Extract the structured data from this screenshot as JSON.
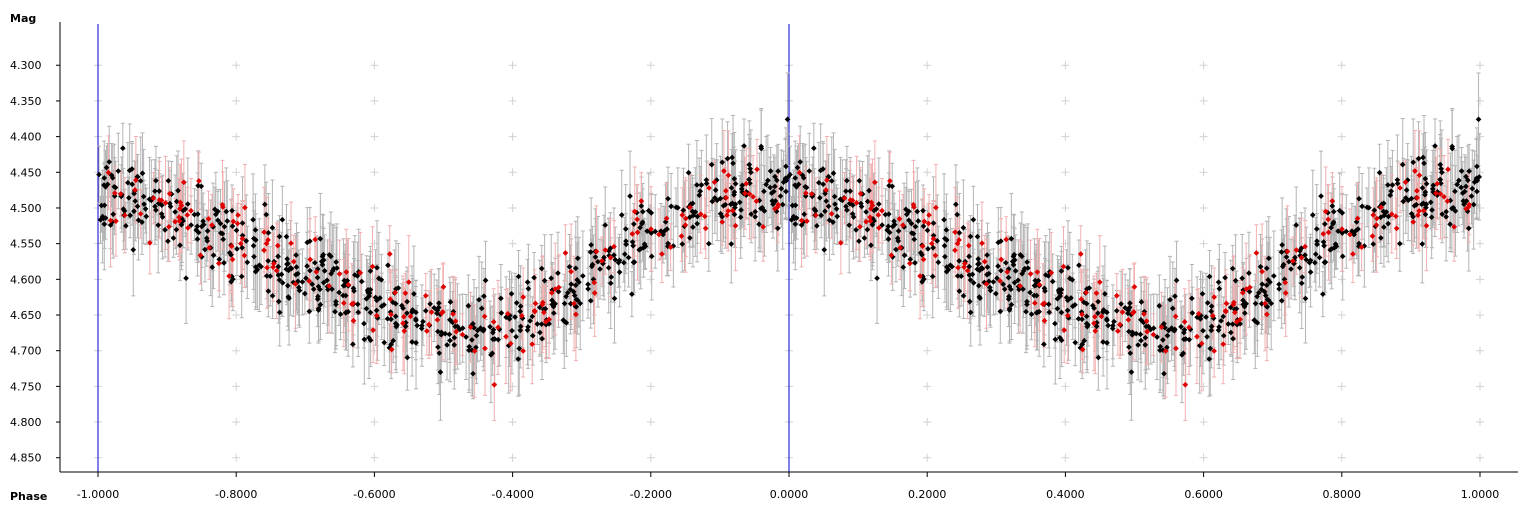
{
  "chart_data": {
    "type": "scatter",
    "title": "",
    "xlabel": "Phase",
    "ylabel": "Mag",
    "xlim": [
      -1.055,
      1.055
    ],
    "ylim": [
      4.87,
      4.245
    ],
    "y_inverted": true,
    "x_ticks": [
      -1.0,
      -0.8,
      -0.6,
      -0.4,
      -0.2,
      0.0,
      0.2,
      0.4,
      0.6,
      0.8,
      1.0
    ],
    "x_tick_labels": [
      "-1.0000",
      "-0.8000",
      "-0.6000",
      "-0.4000",
      "-0.2000",
      "0.0000",
      "0.2000",
      "0.4000",
      "0.6000",
      "0.8000",
      "1.0000"
    ],
    "y_ticks": [
      4.3,
      4.35,
      4.4,
      4.45,
      4.5,
      4.55,
      4.6,
      4.65,
      4.7,
      4.75,
      4.8,
      4.85
    ],
    "y_tick_labels": [
      "4.300",
      "4.350",
      "4.400",
      "4.450",
      "4.500",
      "4.550",
      "4.600",
      "4.650",
      "4.700",
      "4.750",
      "4.800",
      "4.850"
    ],
    "vertical_markers": [
      -1.0,
      0.0
    ],
    "light_curve": {
      "mean_mag": 4.57,
      "amplitude": 0.095,
      "minimum_phase": 0.55,
      "scatter": 0.045,
      "errorbar_halfwidth": 0.045
    },
    "series": [
      {
        "name": "",
        "color": "#000000",
        "errorbar_color": "#b4b4b4",
        "n_points": 620,
        "phases": [
          -1.0,
          0.0
        ]
      },
      {
        "name": "",
        "color": "#e00000",
        "errorbar_color": "#f2b0b0",
        "n_points": 170,
        "phases": [
          -1.0,
          0.0
        ]
      }
    ],
    "colors": {
      "marker_line": "#0000cc",
      "grid_cross": "#d2d2d2",
      "axis": "#000000"
    },
    "grid": "crosses",
    "legend": "none"
  }
}
